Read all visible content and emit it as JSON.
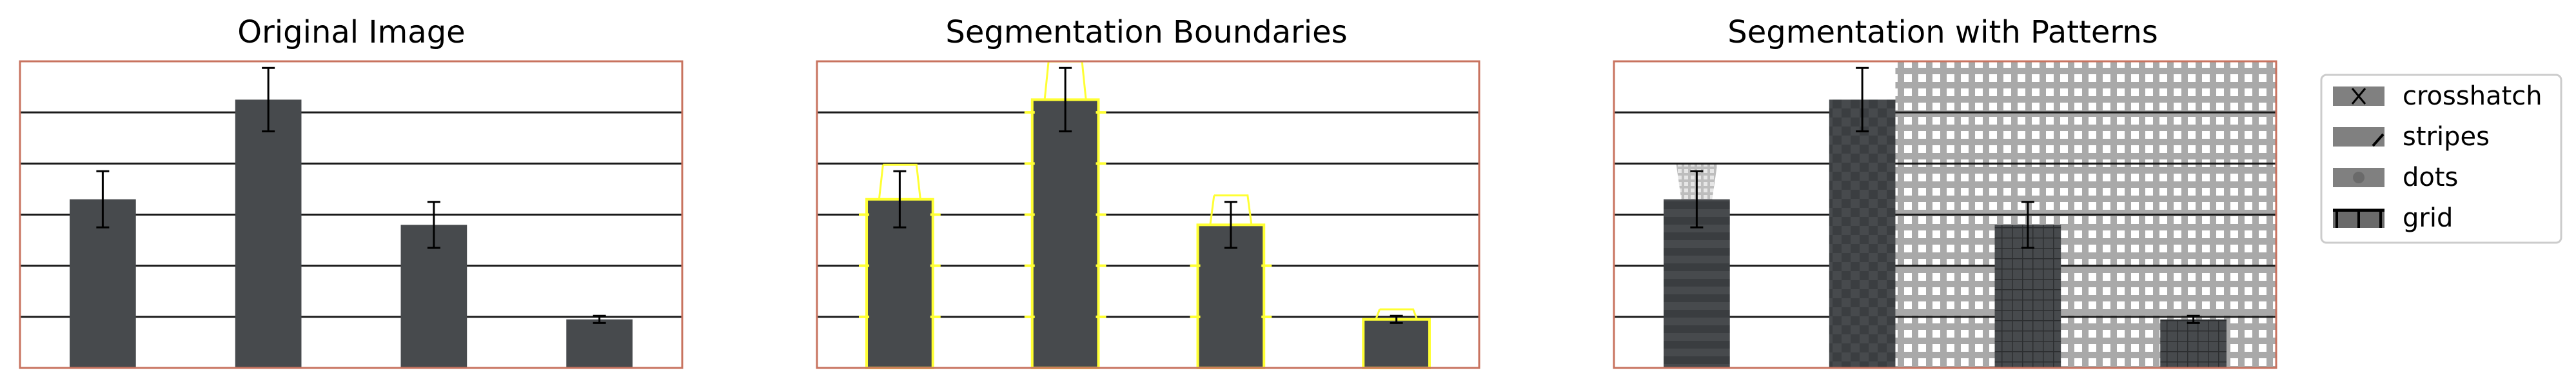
{
  "figure": {
    "panels": [
      {
        "title": "Original Image",
        "variant": "original"
      },
      {
        "title": "Segmentation Boundaries",
        "variant": "boundaries"
      },
      {
        "title": "Segmentation with Patterns",
        "variant": "patterns"
      }
    ],
    "legend": {
      "placement": "right",
      "items": [
        {
          "label": "crosshatch",
          "pattern": "crosshatch"
        },
        {
          "label": "stripes",
          "pattern": "stripes"
        },
        {
          "label": "dots",
          "pattern": "dots"
        },
        {
          "label": "grid",
          "pattern": "grid"
        }
      ]
    },
    "colors": {
      "bar": "#474a4d",
      "frame": "#c8735f",
      "gridline": "#1a1a1a",
      "boundary": "#ffff33",
      "pattern_bg": "#a9a9a9",
      "pattern_light": "#ffffff"
    }
  },
  "chart_data": {
    "type": "bar",
    "categories": [
      "",
      "",
      "",
      ""
    ],
    "values": [
      3.3,
      5.25,
      2.8,
      0.95
    ],
    "errors": [
      0.55,
      0.62,
      0.45,
      0.07
    ],
    "ylim": [
      0,
      6
    ],
    "grid": true,
    "tick_labels_shown": false,
    "bar_patterns": [
      "stripes",
      "crosshatch",
      "grid",
      "grid"
    ]
  }
}
